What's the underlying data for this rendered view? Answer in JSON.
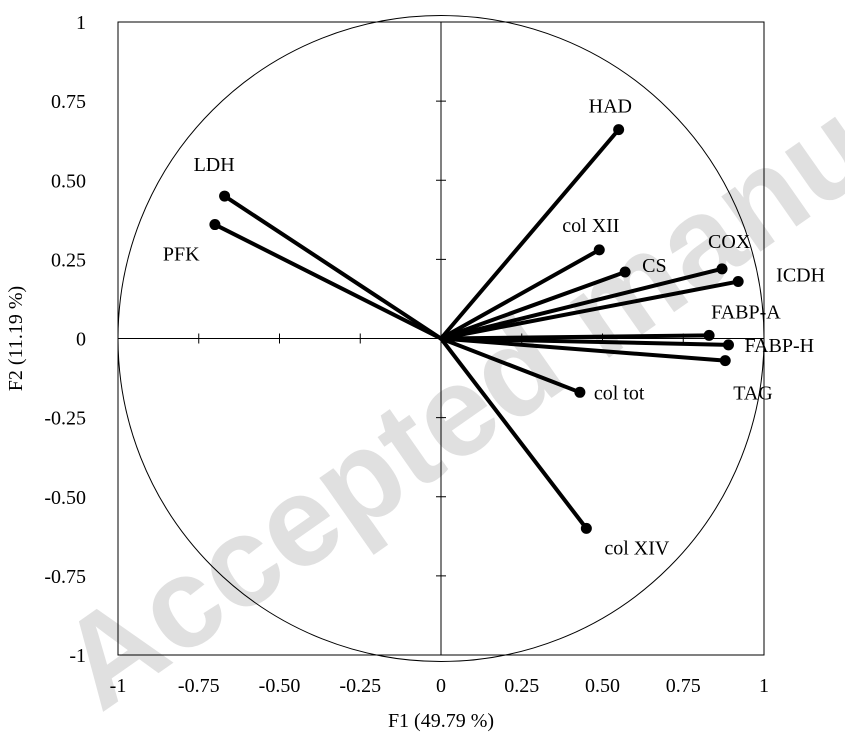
{
  "chart_data": {
    "type": "scatter",
    "subtype": "pca-correlation-circle",
    "title": "",
    "xlabel": "F1 (49.79 %)",
    "ylabel": "F2 (11.19 %)",
    "xlim": [
      -1,
      1
    ],
    "ylim": [
      -1,
      1
    ],
    "x_ticks": [
      "-1",
      "-0.75",
      "-0.50",
      "-0.25",
      "0",
      "0.25",
      "0.50",
      "0.75",
      "1"
    ],
    "x_tick_values": [
      -1,
      -0.75,
      -0.5,
      -0.25,
      0,
      0.25,
      0.5,
      0.75,
      1
    ],
    "y_ticks": [
      "1",
      "0.75",
      "0.50",
      "0.25",
      "0",
      "-0.25",
      "-0.50",
      "-0.75",
      "-1"
    ],
    "y_tick_values": [
      1,
      0.75,
      0.5,
      0.25,
      0,
      -0.25,
      -0.5,
      -0.75,
      -1
    ],
    "unit_circle": true,
    "grid": false,
    "variables": [
      {
        "label": "HAD",
        "x": 0.55,
        "y": 0.66
      },
      {
        "label": "LDH",
        "x": -0.67,
        "y": 0.45
      },
      {
        "label": "PFK",
        "x": -0.7,
        "y": 0.36
      },
      {
        "label": "col XII",
        "x": 0.49,
        "y": 0.28
      },
      {
        "label": "CS",
        "x": 0.57,
        "y": 0.21
      },
      {
        "label": "COX",
        "x": 0.87,
        "y": 0.22
      },
      {
        "label": "ICDH",
        "x": 0.92,
        "y": 0.18
      },
      {
        "label": "FABP-A",
        "x": 0.83,
        "y": 0.01
      },
      {
        "label": "FABP-H",
        "x": 0.89,
        "y": -0.02
      },
      {
        "label": "TAG",
        "x": 0.88,
        "y": -0.07
      },
      {
        "label": "col tot",
        "x": 0.43,
        "y": -0.17
      },
      {
        "label": "col XIV",
        "x": 0.45,
        "y": -0.6
      }
    ]
  },
  "watermark": "Accepted manus",
  "colors": {
    "lines": "#000000",
    "watermark": "#c8c8c8"
  }
}
